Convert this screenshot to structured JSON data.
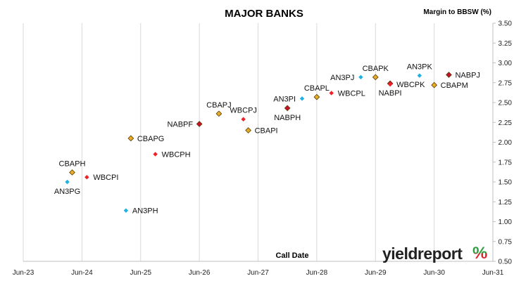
{
  "chart_data": {
    "type": "scatter",
    "title": "MAJOR BANKS",
    "ylabel": "Margin to BBSW (%)",
    "xlabel": "Call Date",
    "x_ticks": [
      "Jun-23",
      "Jun-24",
      "Jun-25",
      "Jun-26",
      "Jun-27",
      "Jun-28",
      "Jun-29",
      "Jun-30",
      "Jun-31"
    ],
    "y_ticks": [
      "0.50",
      "0.75",
      "1.00",
      "1.25",
      "1.50",
      "1.75",
      "2.00",
      "2.25",
      "2.50",
      "2.75",
      "3.00",
      "3.25",
      "3.50"
    ],
    "xlim": [
      "2023-06",
      "2031-06"
    ],
    "ylim": [
      0.5,
      3.5
    ],
    "grid": "vertical",
    "y_axis_side": "right",
    "series_colors": {
      "ANZ": "#1fb1e3",
      "CBA": "#e9ac26",
      "WBC": "#f0202a",
      "NAB": "#c8102e"
    },
    "points": [
      {
        "label": "AN3PG",
        "issuer": "ANZ",
        "x": "2024-03",
        "y": 1.5,
        "label_pos": "below"
      },
      {
        "label": "CBAPH",
        "issuer": "CBA",
        "x": "2024-04",
        "y": 1.62,
        "label_pos": "above"
      },
      {
        "label": "WBCPI",
        "issuer": "WBC",
        "x": "2024-07",
        "y": 1.56,
        "label_pos": "right"
      },
      {
        "label": "AN3PH",
        "issuer": "ANZ",
        "x": "2025-03",
        "y": 1.14,
        "label_pos": "right"
      },
      {
        "label": "CBAPG",
        "issuer": "CBA",
        "x": "2025-04",
        "y": 2.05,
        "label_pos": "right"
      },
      {
        "label": "WBCPH",
        "issuer": "WBC",
        "x": "2025-09",
        "y": 1.85,
        "label_pos": "right"
      },
      {
        "label": "NABPF",
        "issuer": "NAB",
        "x": "2026-06",
        "y": 2.23,
        "label_pos": "left"
      },
      {
        "label": "CBAPJ",
        "issuer": "CBA",
        "x": "2026-10",
        "y": 2.36,
        "label_pos": "above"
      },
      {
        "label": "WBCPJ",
        "issuer": "WBC",
        "x": "2027-03",
        "y": 2.29,
        "label_pos": "above"
      },
      {
        "label": "CBAPI",
        "issuer": "CBA",
        "x": "2027-04",
        "y": 2.15,
        "label_pos": "right"
      },
      {
        "label": "NABPH",
        "issuer": "NAB",
        "x": "2027-12",
        "y": 2.43,
        "label_pos": "below"
      },
      {
        "label": "AN3PI",
        "issuer": "ANZ",
        "x": "2028-03",
        "y": 2.55,
        "label_pos": "left"
      },
      {
        "label": "CBAPL",
        "issuer": "CBA",
        "x": "2028-06",
        "y": 2.57,
        "label_pos": "above"
      },
      {
        "label": "WBCPL",
        "issuer": "WBC",
        "x": "2028-09",
        "y": 2.62,
        "label_pos": "right"
      },
      {
        "label": "AN3PJ",
        "issuer": "ANZ",
        "x": "2029-03",
        "y": 2.82,
        "label_pos": "left"
      },
      {
        "label": "CBAPK",
        "issuer": "CBA",
        "x": "2029-06",
        "y": 2.82,
        "label_pos": "above"
      },
      {
        "label": "NABPI",
        "issuer": "NAB",
        "x": "2029-09",
        "y": 2.74,
        "label_pos": "below"
      },
      {
        "label": "WBCPK",
        "issuer": "WBC",
        "x": "2029-09",
        "y": 2.73,
        "label_pos": "right"
      },
      {
        "label": "AN3PK",
        "issuer": "ANZ",
        "x": "2030-03",
        "y": 2.84,
        "label_pos": "above"
      },
      {
        "label": "CBAPM",
        "issuer": "CBA",
        "x": "2030-06",
        "y": 2.72,
        "label_pos": "right"
      },
      {
        "label": "NABPJ",
        "issuer": "NAB",
        "x": "2030-09",
        "y": 2.85,
        "label_pos": "right"
      }
    ]
  },
  "logo": {
    "text": "yieldreport",
    "pct": "%",
    "colors": {
      "text": "#222222",
      "pct_top": "#2e9f3f",
      "pct_bottom": "#d7282f"
    }
  }
}
